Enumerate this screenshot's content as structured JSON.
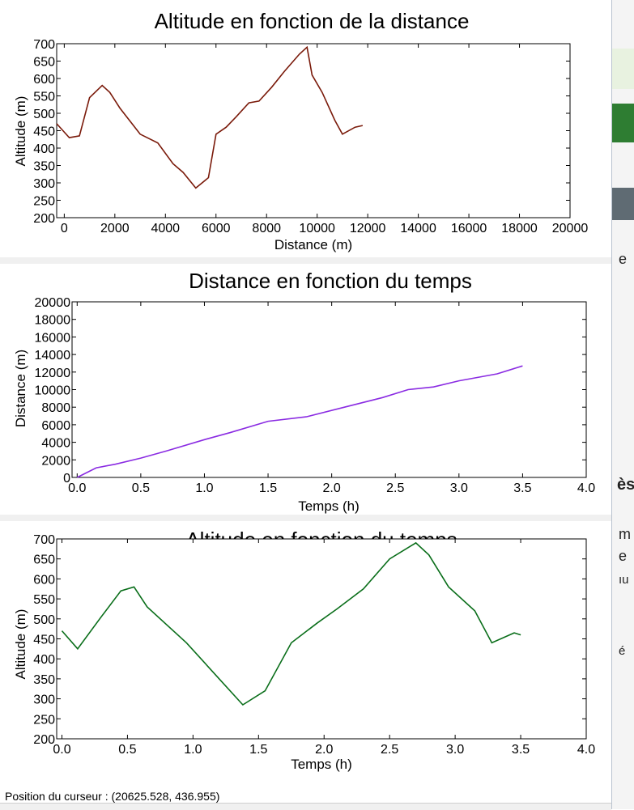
{
  "status": {
    "cursor_position": "Position du curseur : (20625.528, 436.955)"
  },
  "side_text": [
    "e",
    "ès",
    "m",
    "e",
    "ıu",
    "é"
  ],
  "colors": {
    "altitude_distance": "#7a1a0a",
    "distance_temps": "#8a2be2",
    "altitude_temps": "#0a6e1a"
  },
  "chart_data": [
    {
      "type": "line",
      "title": "Altitude en fonction de la distance",
      "xlabel": "Distance (m)",
      "ylabel": "Altitude (m)",
      "xlim": [
        -300,
        20000
      ],
      "ylim": [
        200,
        700
      ],
      "xticks": [
        0,
        2000,
        4000,
        6000,
        8000,
        10000,
        12000,
        14000,
        16000,
        18000,
        20000
      ],
      "yticks": [
        200,
        250,
        300,
        350,
        400,
        450,
        500,
        550,
        600,
        650,
        700
      ],
      "x": [
        -300,
        200,
        600,
        1000,
        1500,
        1800,
        2200,
        3000,
        3700,
        4300,
        4700,
        5200,
        5700,
        6000,
        6400,
        6800,
        7300,
        7700,
        8200,
        8700,
        9300,
        9600,
        9800,
        10200,
        10700,
        11000,
        11500,
        11800
      ],
      "y": [
        470,
        430,
        435,
        545,
        580,
        560,
        515,
        440,
        415,
        355,
        330,
        285,
        315,
        440,
        460,
        490,
        530,
        535,
        575,
        620,
        670,
        690,
        610,
        560,
        480,
        440,
        460,
        465
      ]
    },
    {
      "type": "line",
      "title": "Distance en fonction du temps",
      "xlabel": "Temps (h)",
      "ylabel": "Distance (m)",
      "xlim": [
        -0.04,
        4.0
      ],
      "ylim": [
        0,
        20000
      ],
      "xticks": [
        0.0,
        0.5,
        1.0,
        1.5,
        2.0,
        2.5,
        3.0,
        3.5,
        4.0
      ],
      "yticks": [
        0,
        2000,
        4000,
        6000,
        8000,
        10000,
        12000,
        14000,
        16000,
        18000,
        20000
      ],
      "x": [
        0.0,
        0.15,
        0.3,
        0.5,
        0.7,
        1.0,
        1.2,
        1.5,
        1.8,
        2.1,
        2.4,
        2.6,
        2.8,
        3.0,
        3.3,
        3.5
      ],
      "y": [
        0,
        1100,
        1500,
        2200,
        3000,
        4300,
        5100,
        6400,
        6900,
        8000,
        9100,
        10000,
        10300,
        11000,
        11800,
        12700
      ]
    },
    {
      "type": "line",
      "title": "Altitude en fonction du temps",
      "xlabel": "Temps (h)",
      "ylabel": "Altitude (m)",
      "xlim": [
        -0.04,
        4.0
      ],
      "ylim": [
        200,
        700
      ],
      "xticks": [
        0.0,
        0.5,
        1.0,
        1.5,
        2.0,
        2.5,
        3.0,
        3.5,
        4.0
      ],
      "yticks": [
        200,
        250,
        300,
        350,
        400,
        450,
        500,
        550,
        600,
        650,
        700
      ],
      "x": [
        0.0,
        0.12,
        0.3,
        0.45,
        0.55,
        0.65,
        0.95,
        1.2,
        1.38,
        1.55,
        1.75,
        1.95,
        2.1,
        2.3,
        2.5,
        2.7,
        2.8,
        2.95,
        3.15,
        3.28,
        3.45,
        3.5
      ],
      "y": [
        470,
        425,
        505,
        570,
        580,
        530,
        440,
        350,
        285,
        320,
        440,
        490,
        525,
        575,
        650,
        690,
        660,
        580,
        520,
        440,
        465,
        460
      ]
    }
  ]
}
